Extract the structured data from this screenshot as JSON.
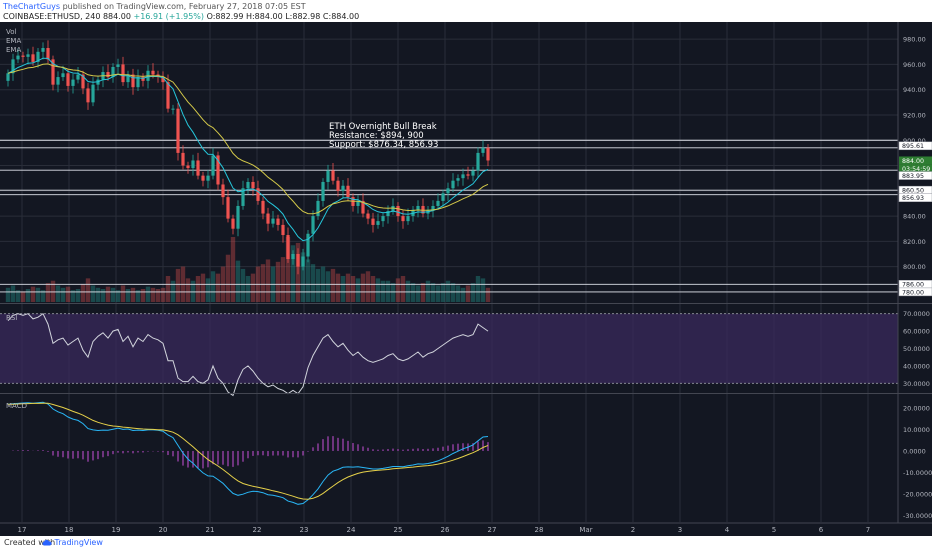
{
  "header": {
    "author": "TheChartGuys",
    "published_text": "published on TradingView.com, February 27, 2018 07:05 EST",
    "symbol": "COINBASE:ETHUSD, 240",
    "last": "884.00",
    "change": "+16.91 (+1.95%)",
    "o": "O:882.99",
    "h": "H:884.00",
    "l": "L:882.98",
    "c": "C:884.00"
  },
  "footer": {
    "created": "Created with",
    "brand": "TradingView"
  },
  "colors": {
    "background": "#131722",
    "up": "#26a69a",
    "down": "#ef5350",
    "ema_fast": "#26c6da",
    "ema_slow": "#d4c94a",
    "grid": "#2a2e39",
    "rsi_band": "#3a2a5c",
    "macd_line": "#29b6f6",
    "signal_line": "#e6d14a",
    "hist": "#ab47bc"
  },
  "chart_data": [
    {
      "type": "candlestick",
      "panel": "price",
      "labels": [
        "Vol",
        "EMA",
        "EMA"
      ],
      "x_ticks": [
        "17",
        "18",
        "19",
        "20",
        "21",
        "22",
        "23",
        "24",
        "25",
        "26",
        "27",
        "28",
        "Mar",
        "2",
        "3",
        "4",
        "5",
        "6",
        "7"
      ],
      "y_ticks": [
        "980.00",
        "960.00",
        "940.00",
        "920.00",
        "900.00",
        "880.00",
        "860.00",
        "840.00",
        "820.00",
        "800.00",
        "780.00"
      ],
      "ylim": [
        772,
        992
      ],
      "price_tags": [
        {
          "value": 895.61,
          "text": "895.61",
          "style": "dark"
        },
        {
          "value": 884.0,
          "text": "884.00",
          "style": "green"
        },
        {
          "value": 883.54,
          "text": "03:54:59",
          "style": "green"
        },
        {
          "value": 883.95,
          "text": "883.95",
          "style": "dark"
        },
        {
          "value": 860.5,
          "text": "860.50",
          "style": "dark"
        },
        {
          "value": 856.93,
          "text": "856.93",
          "style": "dark"
        },
        {
          "value": 786.0,
          "text": "786.00",
          "style": "dark"
        },
        {
          "value": 780.0,
          "text": "780.00",
          "style": "dark"
        }
      ],
      "horizontal_lines": [
        900,
        894,
        876.34,
        860.5,
        856.93,
        786,
        780
      ],
      "annotation": [
        "ETH Overnight Bull Break",
        "Resistance: $894, 900",
        "Support: $876.34, 856.93"
      ],
      "close": [
        953,
        964,
        967,
        966,
        968,
        962,
        970,
        973,
        964,
        944,
        950,
        953,
        943,
        948,
        952,
        941,
        930,
        944,
        948,
        954,
        950,
        958,
        960,
        946,
        952,
        942,
        950,
        947,
        955,
        952,
        950,
        946,
        925,
        925,
        890,
        880,
        878,
        884,
        872,
        868,
        872,
        888,
        865,
        855,
        838,
        830,
        848,
        862,
        867,
        862,
        852,
        842,
        834,
        838,
        833,
        825,
        806,
        810,
        800,
        808,
        826,
        840,
        852,
        867,
        876,
        868,
        860,
        864,
        855,
        848,
        852,
        842,
        838,
        833,
        836,
        840,
        844,
        848,
        840,
        836,
        840,
        845,
        848,
        842,
        845,
        848,
        852,
        858,
        862,
        868,
        870,
        873,
        872,
        876,
        890,
        894,
        884
      ],
      "volume": [
        12,
        14,
        10,
        9,
        11,
        13,
        12,
        10,
        16,
        18,
        14,
        12,
        13,
        10,
        11,
        15,
        20,
        14,
        12,
        11,
        13,
        12,
        10,
        14,
        11,
        12,
        10,
        11,
        13,
        12,
        11,
        12,
        22,
        18,
        28,
        30,
        20,
        18,
        22,
        24,
        20,
        26,
        24,
        30,
        40,
        55,
        35,
        28,
        22,
        24,
        30,
        32,
        36,
        30,
        34,
        38,
        55,
        48,
        50,
        42,
        36,
        32,
        28,
        30,
        26,
        28,
        24,
        22,
        24,
        22,
        20,
        24,
        26,
        22,
        20,
        18,
        18,
        16,
        20,
        22,
        18,
        16,
        14,
        16,
        18,
        16,
        14,
        16,
        18,
        16,
        14,
        12,
        14,
        16,
        22,
        20,
        12
      ]
    },
    {
      "type": "line",
      "panel": "rsi",
      "label": "RSI",
      "y_ticks": [
        "70.0000",
        "60.0000",
        "50.0000",
        "40.0000",
        "30.0000"
      ],
      "ylim": [
        25,
        75
      ],
      "band": [
        30,
        70
      ],
      "values": [
        66,
        69,
        70,
        69,
        70,
        67,
        68,
        70,
        64,
        53,
        55,
        56,
        52,
        54,
        56,
        49,
        45,
        54,
        57,
        59,
        56,
        60,
        61,
        54,
        57,
        51,
        56,
        54,
        58,
        56,
        55,
        53,
        43,
        43,
        33,
        31,
        31,
        34,
        31,
        30,
        32,
        40,
        33,
        30,
        25,
        23,
        32,
        38,
        40,
        37,
        33,
        30,
        28,
        29,
        27,
        26,
        24,
        26,
        24,
        28,
        39,
        46,
        51,
        56,
        58,
        54,
        51,
        53,
        49,
        46,
        48,
        45,
        43,
        42,
        43,
        44,
        46,
        47,
        44,
        43,
        44,
        46,
        48,
        45,
        47,
        48,
        50,
        52,
        54,
        56,
        57,
        58,
        57,
        58,
        64,
        62,
        60
      ]
    },
    {
      "type": "line",
      "panel": "macd",
      "label": "MACD",
      "y_ticks": [
        "20.0000",
        "10.0000",
        "0.0000",
        "-10.0000",
        "-20.0000",
        "-30.0000"
      ],
      "ylim": [
        -33,
        26
      ],
      "series": [
        {
          "values": [
            21.7,
            21.9,
            22.1,
            22.3,
            22.4,
            22.2,
            22.4,
            22.6,
            21.8,
            19.5,
            18.2,
            17.3,
            15.8,
            14.8,
            14.2,
            12.7,
            10.4,
            9.8,
            9.5,
            9.7,
            9.6,
            10.1,
            10.6,
            10.0,
            10.2,
            9.5,
            9.7,
            9.5,
            9.8,
            9.8,
            9.6,
            9.2,
            7.4,
            6.2,
            2.6,
            -1.0,
            -3.8,
            -5.7,
            -8.1,
            -10.2,
            -11.6,
            -11.7,
            -13.3,
            -15.0,
            -17.5,
            -19.7,
            -20.6,
            -20.1,
            -19.2,
            -18.7,
            -18.9,
            -19.4,
            -20.3,
            -20.6,
            -21.1,
            -21.7,
            -23.3,
            -23.9,
            -24.8,
            -24.4,
            -22.7,
            -20.3,
            -17.6,
            -14.2,
            -11.2,
            -9.4,
            -8.6,
            -7.6,
            -7.4,
            -7.5,
            -7.3,
            -7.7,
            -8.0,
            -8.4,
            -8.4,
            -8.1,
            -7.7,
            -7.2,
            -7.2,
            -7.3,
            -6.9,
            -6.5,
            -6.0,
            -6.1,
            -5.8,
            -5.3,
            -4.6,
            -3.6,
            -2.5,
            -1.2,
            -0.1,
            1.0,
            1.8,
            2.8,
            4.7,
            6.5,
            6.7
          ]
        },
        {
          "values": [
            21.7,
            21.7,
            21.8,
            21.9,
            22.0,
            22.1,
            22.1,
            22.2,
            22.2,
            21.6,
            20.9,
            20.2,
            19.3,
            18.4,
            17.6,
            16.6,
            15.4,
            14.2,
            13.3,
            12.6,
            12.0,
            11.6,
            11.4,
            11.1,
            10.9,
            10.6,
            10.4,
            10.2,
            10.1,
            10.0,
            9.9,
            9.8,
            9.3,
            8.7,
            7.5,
            5.8,
            3.9,
            2.0,
            -0.1,
            -2.1,
            -4.0,
            -5.5,
            -7.0,
            -8.6,
            -10.4,
            -12.3,
            -13.9,
            -15.1,
            -15.8,
            -16.4,
            -16.9,
            -17.4,
            -17.9,
            -18.5,
            -19.0,
            -19.6,
            -20.3,
            -21.0,
            -21.8,
            -22.3,
            -22.4,
            -22.0,
            -21.1,
            -19.7,
            -18.0,
            -16.3,
            -14.7,
            -13.3,
            -12.1,
            -11.2,
            -10.4,
            -9.8,
            -9.5,
            -9.2,
            -9.0,
            -8.8,
            -8.6,
            -8.3,
            -8.1,
            -7.9,
            -7.7,
            -7.5,
            -7.2,
            -7.0,
            -6.8,
            -6.5,
            -6.1,
            -5.6,
            -5.0,
            -4.3,
            -3.5,
            -2.6,
            -1.7,
            -0.8,
            0.3,
            1.6,
            2.6
          ]
        },
        {
          "values": [
            0.0,
            0.2,
            0.3,
            0.4,
            0.4,
            0.1,
            0.3,
            0.4,
            -0.4,
            -2.1,
            -2.7,
            -2.9,
            -3.5,
            -3.6,
            -3.4,
            -3.9,
            -5.0,
            -4.4,
            -3.8,
            -2.9,
            -2.4,
            -1.5,
            -0.8,
            -1.1,
            -0.7,
            -1.1,
            -0.7,
            -0.7,
            -0.3,
            -0.2,
            -0.3,
            -0.6,
            -1.9,
            -2.5,
            -4.9,
            -6.8,
            -7.7,
            -7.7,
            -8.0,
            -8.1,
            -7.6,
            -6.2,
            -6.3,
            -6.4,
            -7.1,
            -7.4,
            -6.7,
            -5.0,
            -3.4,
            -2.3,
            -2.0,
            -2.0,
            -2.4,
            -2.1,
            -2.1,
            -2.1,
            -3.0,
            -2.9,
            -3.0,
            -2.1,
            -0.3,
            1.7,
            3.5,
            5.5,
            6.8,
            6.9,
            6.1,
            5.7,
            4.7,
            3.7,
            3.1,
            2.1,
            1.5,
            0.8,
            0.6,
            0.7,
            0.9,
            1.1,
            0.9,
            0.6,
            0.8,
            1.0,
            1.2,
            0.9,
            1.0,
            1.2,
            1.5,
            2.0,
            2.5,
            3.1,
            3.4,
            3.6,
            3.5,
            3.6,
            4.4,
            4.9,
            4.1
          ]
        }
      ]
    }
  ]
}
